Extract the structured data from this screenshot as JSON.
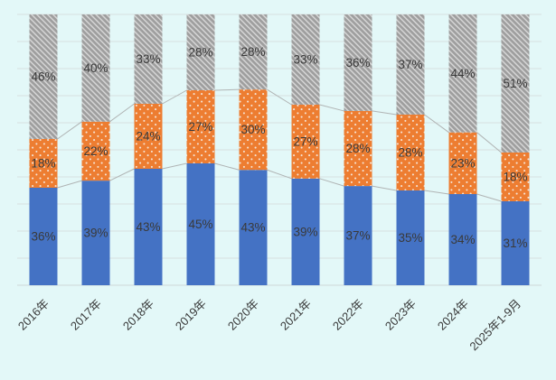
{
  "chart_data": {
    "type": "bar",
    "subtype": "stacked-100-percent-column",
    "title": "",
    "xlabel": "",
    "ylabel": "",
    "categories": [
      "2016年",
      "2017年",
      "2018年",
      "2019年",
      "2020年",
      "2021年",
      "2022年",
      "2023年",
      "2024年",
      "2025年1-9月"
    ],
    "series": [
      {
        "name": "blue-solid-bottom",
        "color": "#4472C4",
        "fill_pattern": "solid",
        "values": [
          36,
          39,
          43,
          45,
          43,
          39,
          37,
          35,
          34,
          31
        ]
      },
      {
        "name": "orange-white-dots-middle",
        "color": "#ED7D31",
        "fill_pattern": "white-dots",
        "values": [
          18,
          22,
          24,
          27,
          30,
          27,
          28,
          28,
          23,
          18
        ]
      },
      {
        "name": "gray-hatched-top",
        "color": "#A5A5A5",
        "fill_pattern": "light-diagonal-stripes",
        "values": [
          46,
          40,
          33,
          28,
          28,
          33,
          36,
          37,
          44,
          51
        ]
      }
    ],
    "data_label_format": "{value}%",
    "data_labels_position": "center-of-segment",
    "ylim": [
      0,
      100
    ],
    "gridlines": {
      "horizontal": true,
      "interval_percent": 10,
      "vertical": false
    },
    "legend_position": "none",
    "series_connector_lines": true,
    "x_tick_rotation_deg": -45
  },
  "colors": {
    "background": "#E3F8F8",
    "gridline": "#D7E0E0",
    "axis_line": "#CFD8D8",
    "connector_line": "#B0B4B4",
    "data_label_text": "#3A3A3A",
    "axis_label_text": "#3A3A3A",
    "dot_pattern_dot": "#F5E3D3",
    "hatch_stripe": "#D6D6D6",
    "hatch_base": "#9E9E9E"
  }
}
